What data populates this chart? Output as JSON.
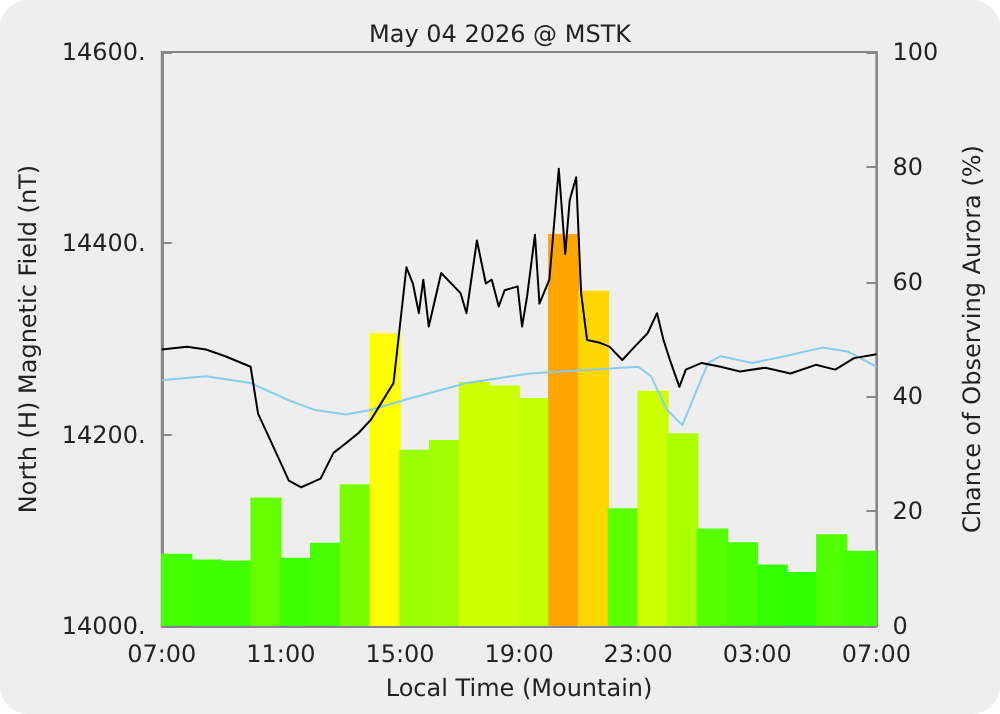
{
  "chart_data": {
    "type": "line",
    "title": "May 04 2026 @ MSTK",
    "xlabel": "Local Time (Mountain)",
    "ylabel": "North (H) Magnetic Field (nT)",
    "y2label": "Chance of Observing Aurora (%)",
    "xlim": [
      "2026-05-04T07:00",
      "2026-05-05T07:00"
    ],
    "xticks": [
      {
        "value": "2026-05-04T07:00",
        "label": "07:00"
      },
      {
        "value": "2026-05-04T11:00",
        "label": "11:00"
      },
      {
        "value": "2026-05-04T15:00",
        "label": "15:00"
      },
      {
        "value": "2026-05-04T19:00",
        "label": "19:00"
      },
      {
        "value": "2026-05-04T23:00",
        "label": "23:00"
      },
      {
        "value": "2026-05-05T03:00",
        "label": "03:00"
      },
      {
        "value": "2026-05-05T07:00",
        "label": "07:00"
      }
    ],
    "ylim": [
      14000,
      14600
    ],
    "yticks": [
      {
        "value": 14000,
        "label": "14000."
      },
      {
        "value": 14200,
        "label": "14200."
      },
      {
        "value": 14400,
        "label": "14400."
      },
      {
        "value": 14600,
        "label": "14600."
      }
    ],
    "y2lim": [
      0,
      100
    ],
    "y2ticks": [
      0,
      20,
      40,
      60,
      80,
      100
    ],
    "series": [
      {
        "type": "bar",
        "axis": "y2",
        "x": [
          "2026-05-04T07:30",
          "2026-05-04T08:30",
          "2026-05-04T09:30",
          "2026-05-04T10:30",
          "2026-05-04T11:30",
          "2026-05-04T12:30",
          "2026-05-04T13:30",
          "2026-05-04T14:30",
          "2026-05-04T15:30",
          "2026-05-04T16:30",
          "2026-05-04T17:30",
          "2026-05-04T18:30",
          "2026-05-04T19:30",
          "2026-05-04T20:30",
          "2026-05-04T21:30",
          "2026-05-04T22:30",
          "2026-05-04T23:30",
          "2026-05-05T00:30",
          "2026-05-05T01:30",
          "2026-05-05T02:30",
          "2026-05-05T03:30",
          "2026-05-05T04:30",
          "2026-05-05T05:30",
          "2026-05-05T06:30"
        ],
        "values": [
          12.6,
          11.6,
          11.4,
          22.4,
          11.9,
          14.5,
          24.7,
          51,
          30.7,
          32.4,
          42.5,
          41.9,
          39.7,
          68.3,
          58.4,
          20.5,
          41,
          33.6,
          17,
          14.6,
          10.7,
          9.4,
          16,
          13.1
        ],
        "colors": [
          "#44ff00",
          "#40ff00",
          "#40ff00",
          "#66ff00",
          "#40ff00",
          "#48ff00",
          "#77ff00",
          "#ffff00",
          "#99ff00",
          "#a0ff00",
          "#ccff00",
          "#ccff00",
          "#c0ff00",
          "#ffa500",
          "#ffd700",
          "#5cff00",
          "#ccff00",
          "#aaff00",
          "#55ff00",
          "#48ff00",
          "#38ff00",
          "#30ff00",
          "#50ff00",
          "#44ff00"
        ]
      },
      {
        "color": "#87ceeb",
        "x": [
          "2026-05-04T07:00",
          "2026-05-04T08:29",
          "2026-05-04T09:59",
          "2026-05-04T11:16",
          "2026-05-04T12:07",
          "2026-05-04T13:11",
          "2026-05-04T14:02",
          "2026-05-04T15:07",
          "2026-05-04T17:14",
          "2026-05-04T19:22",
          "2026-05-04T21:31",
          "2026-05-04T23:00",
          "2026-05-04T23:26",
          "2026-05-04T23:58",
          "2026-05-05T00:29",
          "2026-05-05T00:55",
          "2026-05-05T01:21",
          "2026-05-05T01:46",
          "2026-05-05T02:50",
          "2026-05-05T03:55",
          "2026-05-05T05:11",
          "2026-05-05T06:02",
          "2026-05-05T07:00"
        ],
        "values": [
          14257,
          14261,
          14254,
          14236,
          14226,
          14221,
          14226,
          14236,
          14254,
          14264,
          14268,
          14271,
          14261,
          14226,
          14210,
          14243,
          14275,
          14282,
          14275,
          14282,
          14291,
          14287,
          14271
        ]
      },
      {
        "color": "#000000",
        "x": [
          "2026-05-04T07:00",
          "2026-05-04T07:51",
          "2026-05-04T08:29",
          "2026-05-04T09:08",
          "2026-05-04T09:59",
          "2026-05-04T10:14",
          "2026-05-04T10:38",
          "2026-05-04T11:16",
          "2026-05-04T11:41",
          "2026-05-04T12:20",
          "2026-05-04T12:46",
          "2026-05-04T13:11",
          "2026-05-04T13:37",
          "2026-05-04T14:02",
          "2026-05-04T14:47",
          "2026-05-04T15:13",
          "2026-05-04T15:26",
          "2026-05-04T15:38",
          "2026-05-04T15:47",
          "2026-05-04T15:58",
          "2026-05-04T16:23",
          "2026-05-04T16:49",
          "2026-05-04T17:02",
          "2026-05-04T17:14",
          "2026-05-04T17:35",
          "2026-05-04T17:53",
          "2026-05-04T18:05",
          "2026-05-04T18:19",
          "2026-05-04T18:31",
          "2026-05-04T18:57",
          "2026-05-04T19:06",
          "2026-05-04T19:16",
          "2026-05-04T19:32",
          "2026-05-04T19:41",
          "2026-05-04T20:01",
          "2026-05-04T20:20",
          "2026-05-04T20:33",
          "2026-05-04T20:42",
          "2026-05-04T20:55",
          "2026-05-04T21:05",
          "2026-05-04T21:17",
          "2026-05-04T21:43",
          "2026-05-04T22:02",
          "2026-05-04T22:28",
          "2026-05-04T22:53",
          "2026-05-04T23:19",
          "2026-05-04T23:38",
          "2026-05-04T23:51",
          "2026-05-05T00:04",
          "2026-05-05T00:23",
          "2026-05-05T00:36",
          "2026-05-05T01:08",
          "2026-05-05T01:46",
          "2026-05-05T02:25",
          "2026-05-05T03:16",
          "2026-05-05T04:07",
          "2026-05-05T04:58",
          "2026-05-05T05:37",
          "2026-05-05T06:15",
          "2026-05-05T07:00"
        ],
        "values": [
          14289,
          14292,
          14289,
          14282,
          14271,
          14222,
          14195,
          14152,
          14145,
          14154,
          14181,
          14191,
          14202,
          14216,
          14254,
          14375,
          14358,
          14327,
          14362,
          14313,
          14369,
          14355,
          14348,
          14327,
          14403,
          14358,
          14362,
          14334,
          14351,
          14355,
          14313,
          14344,
          14409,
          14337,
          14362,
          14478,
          14389,
          14445,
          14469,
          14348,
          14299,
          14296,
          14292,
          14278,
          14292,
          14306,
          14327,
          14299,
          14278,
          14250,
          14268,
          14275,
          14271,
          14266,
          14270,
          14264,
          14273,
          14268,
          14280,
          14284
        ]
      }
    ],
    "grid": false
  }
}
